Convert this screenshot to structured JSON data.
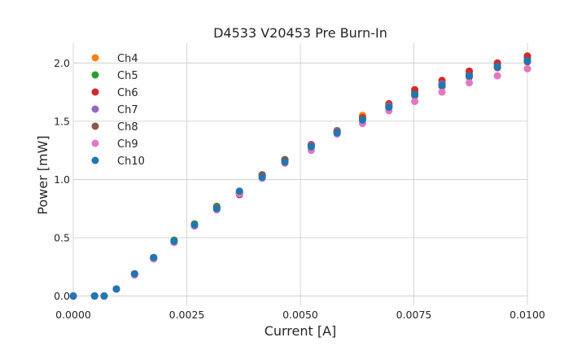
{
  "chart_data": {
    "type": "scatter",
    "title": "D4533 V20453 Pre Burn-In",
    "xlabel": "Current [A]",
    "ylabel": "Power [mW]",
    "xlim": [
      0.0,
      0.01
    ],
    "ylim": [
      -0.08,
      2.17
    ],
    "xticks": [
      "0.0000",
      "0.0025",
      "0.0050",
      "0.0075",
      "0.0100"
    ],
    "yticks": [
      "0.0",
      "0.5",
      "1.0",
      "1.5",
      "2.0"
    ],
    "xtick_values": [
      0.0,
      0.0025,
      0.005,
      0.0075,
      0.01
    ],
    "ytick_values": [
      0.0,
      0.5,
      1.0,
      1.5,
      2.0
    ],
    "grid": true,
    "legend_position": "top-left",
    "x": [
      0.0,
      0.00047,
      0.00068,
      0.00095,
      0.00135,
      0.00177,
      0.00222,
      0.00267,
      0.00316,
      0.00366,
      0.00416,
      0.00466,
      0.00524,
      0.00581,
      0.00637,
      0.00695,
      0.00752,
      0.00812,
      0.00872,
      0.00934,
      0.01
    ],
    "series": [
      {
        "name": "Ch4",
        "color": "#ff7f0e",
        "values": [
          0.0,
          0.0,
          0.0,
          0.06,
          0.19,
          0.33,
          0.47,
          0.61,
          0.76,
          0.89,
          1.03,
          1.16,
          1.29,
          1.41,
          1.55,
          1.64,
          1.75,
          1.84,
          1.92,
          1.99,
          2.05
        ]
      },
      {
        "name": "Ch5",
        "color": "#2ca02c",
        "values": [
          0.0,
          0.0,
          0.0,
          0.06,
          0.19,
          0.33,
          0.48,
          0.62,
          0.77,
          0.89,
          1.04,
          1.17,
          1.29,
          1.41,
          1.53,
          1.64,
          1.75,
          1.82,
          1.9,
          1.98,
          2.04
        ]
      },
      {
        "name": "Ch6",
        "color": "#d62728",
        "values": [
          0.0,
          0.0,
          0.0,
          0.06,
          0.19,
          0.33,
          0.47,
          0.61,
          0.76,
          0.88,
          1.04,
          1.17,
          1.3,
          1.42,
          1.53,
          1.65,
          1.77,
          1.85,
          1.93,
          2.0,
          2.06
        ]
      },
      {
        "name": "Ch7",
        "color": "#9467bd",
        "values": [
          0.0,
          0.0,
          0.0,
          0.06,
          0.19,
          0.32,
          0.47,
          0.61,
          0.76,
          0.88,
          1.04,
          1.17,
          1.3,
          1.42,
          1.52,
          1.63,
          1.73,
          1.82,
          1.89,
          1.96,
          2.02
        ]
      },
      {
        "name": "Ch8",
        "color": "#8c564b",
        "values": [
          0.0,
          0.0,
          0.0,
          0.06,
          0.19,
          0.32,
          0.47,
          0.61,
          0.76,
          0.87,
          1.04,
          1.17,
          1.29,
          1.41,
          1.52,
          1.62,
          1.72,
          1.8,
          1.88,
          1.96,
          2.01
        ]
      },
      {
        "name": "Ch9",
        "color": "#e377c2",
        "values": [
          0.0,
          0.0,
          0.0,
          0.06,
          0.18,
          0.32,
          0.46,
          0.6,
          0.74,
          0.88,
          1.01,
          1.14,
          1.25,
          1.39,
          1.48,
          1.59,
          1.67,
          1.75,
          1.83,
          1.89,
          1.95
        ]
      },
      {
        "name": "Ch10",
        "color": "#1f77b4",
        "values": [
          0.0,
          0.0,
          0.0,
          0.06,
          0.19,
          0.33,
          0.47,
          0.61,
          0.75,
          0.9,
          1.02,
          1.15,
          1.28,
          1.4,
          1.51,
          1.62,
          1.73,
          1.81,
          1.89,
          1.97,
          2.02
        ]
      }
    ]
  }
}
